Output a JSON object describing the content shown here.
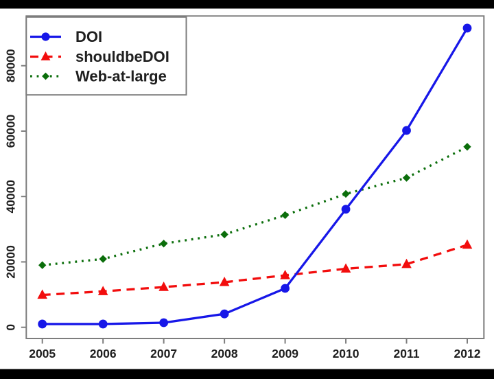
{
  "window": {
    "background": "#000000",
    "canvas_background": "#ffffff",
    "top_bar_height": 12.5,
    "bottom_bar_height": 14.5
  },
  "chart_data": {
    "type": "line",
    "title": "",
    "xlabel": "",
    "ylabel": "",
    "x": [
      2005,
      2006,
      2007,
      2008,
      2009,
      2010,
      2011,
      2012
    ],
    "xtick_labels": [
      "2005",
      "2006",
      "2007",
      "2008",
      "2009",
      "2010",
      "2011",
      "2012"
    ],
    "yticks": [
      0,
      20000,
      40000,
      60000,
      80000
    ],
    "ytick_labels": [
      "0",
      "20000",
      "40000",
      "60000",
      "80000"
    ],
    "ylim": [
      0,
      95000
    ],
    "grid": false,
    "legend_position": "top-left",
    "axis_color": "#7d7d7d",
    "text_color": "#1f1f1f",
    "series": [
      {
        "name": "DOI",
        "color": "#1717e8",
        "line_style": "solid",
        "marker": "circle",
        "values": [
          1000,
          1000,
          1400,
          4100,
          11900,
          36100,
          60200,
          91500
        ]
      },
      {
        "name": "shouldbeDOI",
        "color": "#f20d0d",
        "line_style": "dashed",
        "marker": "triangle",
        "values": [
          9900,
          11000,
          12300,
          13800,
          15900,
          17900,
          19300,
          25200
        ]
      },
      {
        "name": "Web-at-large",
        "color": "#0b6e0b",
        "line_style": "dotted",
        "marker": "diamond",
        "values": [
          19000,
          20900,
          25600,
          28400,
          34300,
          40800,
          45700,
          55200
        ]
      }
    ]
  }
}
